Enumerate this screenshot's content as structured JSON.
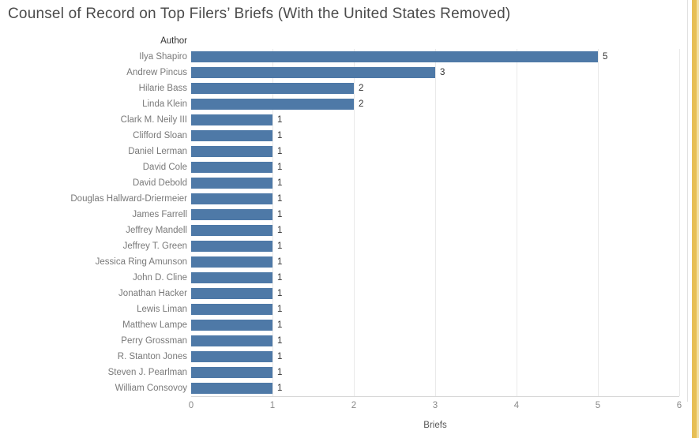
{
  "title": "Counsel of Record on Top Filers’ Briefs (With the United States Removed)",
  "chart_data": {
    "type": "bar",
    "orientation": "horizontal",
    "title": "Counsel of Record on Top Filers’ Briefs (With the United States Removed)",
    "row_header": "Author",
    "xlabel": "Briefs",
    "xlim": [
      0,
      6
    ],
    "x_ticks": [
      0,
      1,
      2,
      3,
      4,
      5,
      6
    ],
    "grid": "vertical-light",
    "legend": "none",
    "value_labels": "shown at bar ends",
    "categories": [
      "Ilya Shapiro",
      "Andrew Pincus",
      "Hilarie Bass",
      "Linda Klein",
      "Clark M. Neily III",
      "Clifford Sloan",
      "Daniel Lerman",
      "David Cole",
      "David Debold",
      "Douglas Hallward-Driermeier",
      "James Farrell",
      "Jeffrey Mandell",
      "Jeffrey T. Green",
      "Jessica Ring Amunson",
      "John D. Cline",
      "Jonathan Hacker",
      "Lewis Liman",
      "Matthew Lampe",
      "Perry Grossman",
      "R. Stanton Jones",
      "Steven J. Pearlman",
      "William Consovoy"
    ],
    "values": [
      5,
      3,
      2,
      2,
      1,
      1,
      1,
      1,
      1,
      1,
      1,
      1,
      1,
      1,
      1,
      1,
      1,
      1,
      1,
      1,
      1,
      1
    ]
  },
  "colors": {
    "bar": "#4e79a7",
    "title_text": "#4b4b4b",
    "category_text": "#797979",
    "header_text": "#333333",
    "value_text": "#333333",
    "tick_text": "#8a8a8a",
    "gridline": "#e9e9e9",
    "axis_line": "#d7d7d7",
    "pane_border": "#e1e1e1",
    "scroll_strip": "#e7bf55",
    "scroll_strip_light": "#f2dfa2"
  }
}
